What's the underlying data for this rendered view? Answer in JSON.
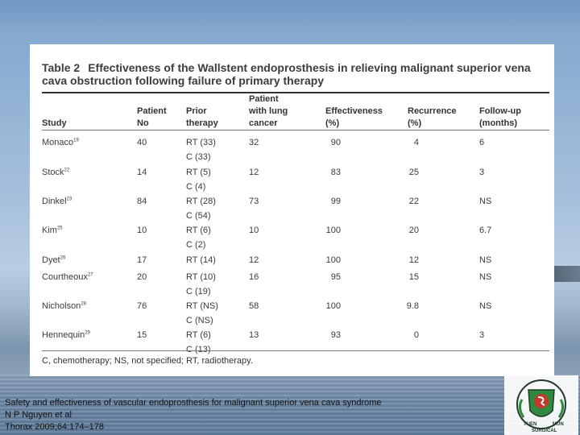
{
  "table": {
    "number": "Table 2",
    "title": "Effectiveness of the Wallstent endoprosthesis in relieving malignant superior vena cava obstruction following failure of primary therapy",
    "headers": {
      "study": "Study",
      "patients": "Patient\nNo",
      "prior": "Prior\ntherapy",
      "lung": "Patient\nwith lung\ncancer",
      "effectiveness": "Effectiveness\n(%)",
      "recurrence": "Recurrence\n(%)",
      "followup": "Follow-up\n(months)"
    },
    "rows": [
      {
        "study": "Monaco",
        "ref": "19",
        "patients": "40",
        "prior": [
          "RT (33)",
          "C (33)"
        ],
        "lung": "32",
        "effectiveness": "90",
        "recurrence": "4",
        "followup": "6"
      },
      {
        "study": "Stock",
        "ref": "22",
        "patients": "14",
        "prior": [
          "RT (5)",
          "C (4)"
        ],
        "lung": "12",
        "effectiveness": "83",
        "recurrence": "25",
        "followup": "3"
      },
      {
        "study": "Dinkel",
        "ref": "23",
        "patients": "84",
        "prior": [
          "RT (28)",
          "C (54)"
        ],
        "lung": "73",
        "effectiveness": "99",
        "recurrence": "22",
        "followup": "NS"
      },
      {
        "study": "Kim",
        "ref": "25",
        "patients": "10",
        "prior": [
          "RT (6)",
          "C (2)"
        ],
        "lung": "10",
        "effectiveness": "100",
        "recurrence": "20",
        "followup": "6.7"
      },
      {
        "study": "Dyet",
        "ref": "26",
        "patients": "17",
        "prior": [
          "RT (14)"
        ],
        "lung": "12",
        "effectiveness": "100",
        "recurrence": "12",
        "followup": "NS"
      },
      {
        "study": "Courtheoux",
        "ref": "27",
        "patients": "20",
        "prior": [
          "RT (10)",
          "C (19)"
        ],
        "lung": "16",
        "effectiveness": "95",
        "recurrence": "15",
        "followup": "NS"
      },
      {
        "study": "Nicholson",
        "ref": "28",
        "patients": "76",
        "prior": [
          "RT (NS)",
          "C (NS)"
        ],
        "lung": "58",
        "effectiveness": "100",
        "recurrence": "9.8",
        "followup": "NS"
      },
      {
        "study": "Hennequin",
        "ref": "29",
        "patients": "15",
        "prior": [
          "RT (6)",
          "C (13)"
        ],
        "lung": "13",
        "effectiveness": "93",
        "recurrence": "0",
        "followup": "3"
      }
    ],
    "footnote": "C, chemotherapy; NS, not specified; RT, radiotherapy."
  },
  "citation": {
    "line1": "Safety and effectiveness of vascular endoprosthesis for malignant superior vena cava syndrome",
    "line2": "N P Nguyen et al",
    "line3": "Thorax 2009;64:174–178"
  },
  "logo": {
    "icon": "surgical-society-crest-icon",
    "text_left": "TUEN",
    "text_right": "MUN",
    "text_bottom": "SURGICAL",
    "colors": {
      "green": "#2d8a3e",
      "red": "#c0392b",
      "dark": "#1f3b24"
    }
  }
}
